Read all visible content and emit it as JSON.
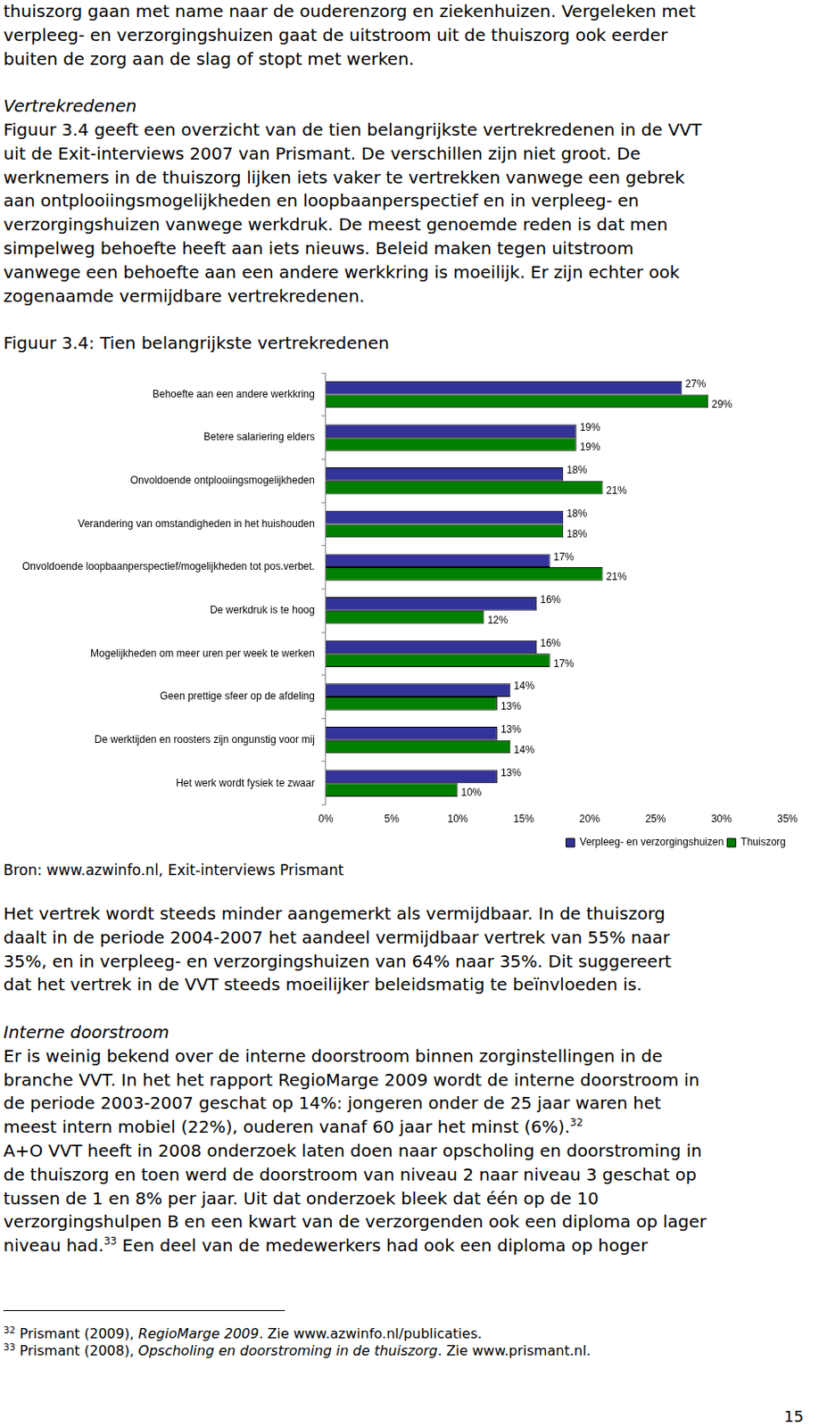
{
  "page": {
    "paragraphs_before": [
      {
        "lines": [
          "thuiszorg gaan met name naar de ouderenzorg en ziekenhuizen. Vergeleken met",
          "verpleeg- en verzorgingshuizen gaat de uitstroom uit de thuiszorg ook eerder",
          "buiten de zorg aan de slag of stopt met werken."
        ]
      },
      {
        "heading": "Vertrekredenen",
        "lines": [
          "Figuur 3.4 geeft een overzicht van de tien belangrijkste vertrekredenen in de VVT",
          "uit de Exit-interviews 2007 van Prismant. De verschillen zijn niet groot. De",
          "werknemers in de thuiszorg lijken iets vaker te vertrekken vanwege een gebrek",
          "aan ontplooiingsmogelijkheden en loopbaanperspectief en in verpleeg- en",
          "verzorgingshuizen vanwege werkdruk. De meest genoemde reden is dat men",
          "simpelweg behoefte heeft aan iets nieuws. Beleid maken tegen uitstroom",
          "vanwege een behoefte aan een andere werkkring is moeilijk. Er zijn echter ook",
          "zogenaamde vermijdbare vertrekredenen."
        ]
      }
    ],
    "source": "Bron: www.azwinfo.nl, Exit-interviews Prismant",
    "paragraphs_after": [
      {
        "lines": [
          "Het vertrek wordt steeds minder aangemerkt als vermijdbaar. In de thuiszorg",
          "daalt in de periode 2004-2007 het aandeel vermijdbaar vertrek van 55% naar",
          "35%, en in verpleeg- en verzorgingshuizen van 64% naar 35%. Dit suggereert",
          "dat het vertrek in de VVT steeds moeilijker beleidsmatig te beïnvloeden is."
        ]
      },
      {
        "heading": "Interne doorstroom",
        "lines": [
          "Er is weinig bekend over de interne doorstroom binnen zorginstellingen in de",
          "branche VVT. In het het rapport RegioMarge 2009 wordt de interne doorstroom in",
          "de periode 2003-2007 geschat op 14%: jongeren onder de 25 jaar waren het",
          [
            "meest intern mobiel (22%), ouderen vanaf 60 jaar het minst (6%).",
            {
              "sup": "32"
            }
          ],
          "A+O VVT heeft in 2008 onderzoek laten doen naar opscholing en doorstroming in",
          "de thuiszorg en toen werd de doorstroom van niveau 2 naar niveau 3 geschat op",
          "tussen de 1 en 8% per jaar. Uit dat onderzoek bleek dat één op de 10",
          "verzorgingshulpen B en een kwart van de verzorgenden ook een diploma op lager",
          [
            "niveau had.",
            {
              "sup": "33"
            },
            " Een deel van de medewerkers had ook een diploma op hoger"
          ]
        ]
      }
    ],
    "footnotes": [
      [
        {
          "sup": "32"
        },
        " Prismant (2009), ",
        {
          "italic": "RegioMarge 2009"
        },
        ". Zie www.azwinfo.nl/publicaties."
      ],
      [
        {
          "sup": "33"
        },
        " Prismant (2008), ",
        {
          "italic": "Opscholing en doorstroming in de thuiszorg"
        },
        ". Zie www.prismant.nl."
      ]
    ],
    "page_number": "15"
  },
  "chart_data": {
    "type": "bar",
    "orientation": "horizontal",
    "title": "Figuur 3.4: Tien belangrijkste vertrekredenen",
    "categories": [
      "Behoefte aan een andere werkkring",
      "Betere salariering elders",
      "Onvoldoende ontplooiingsmogelijkheden",
      "Verandering van omstandigheden in het huishouden",
      "Onvoldoende loopbaanperspectief/mogelijkheden tot pos.verbet.",
      "De werkdruk is te hoog",
      "Mogelijkheden om meer uren per week te werken",
      "Geen prettige sfeer op de afdeling",
      "De werktijden en roosters zijn ongunstig voor mij",
      "Het werk wordt fysiek te zwaar"
    ],
    "series": [
      {
        "name": "Verpleeg- en verzorgingshuizen",
        "color": "#333399",
        "values": [
          27,
          19,
          18,
          18,
          17,
          16,
          16,
          14,
          13,
          13
        ],
        "value_labels": [
          "27%",
          "19%",
          "18%",
          "18%",
          "17%",
          "16%",
          "16%",
          "14%",
          "13%",
          "13%"
        ]
      },
      {
        "name": "Thuiszorg",
        "color": "#008000",
        "values": [
          29,
          19,
          21,
          18,
          21,
          12,
          17,
          13,
          14,
          10
        ],
        "value_labels": [
          "29%",
          "19%",
          "21%",
          "18%",
          "21%",
          "12%",
          "17%",
          "13%",
          "14%",
          "10%"
        ]
      }
    ],
    "xlim": [
      0,
      35
    ],
    "xticks": [
      {
        "value": 0,
        "label": "0%"
      },
      {
        "value": 5,
        "label": "5%"
      },
      {
        "value": 10,
        "label": "10%"
      },
      {
        "value": 15,
        "label": "15%"
      },
      {
        "value": 20,
        "label": "20%"
      },
      {
        "value": 25,
        "label": "25%"
      },
      {
        "value": 30,
        "label": "30%"
      },
      {
        "value": 35,
        "label": "35%"
      }
    ],
    "grid": false,
    "legend": "bottom-right",
    "data_labels": true
  }
}
